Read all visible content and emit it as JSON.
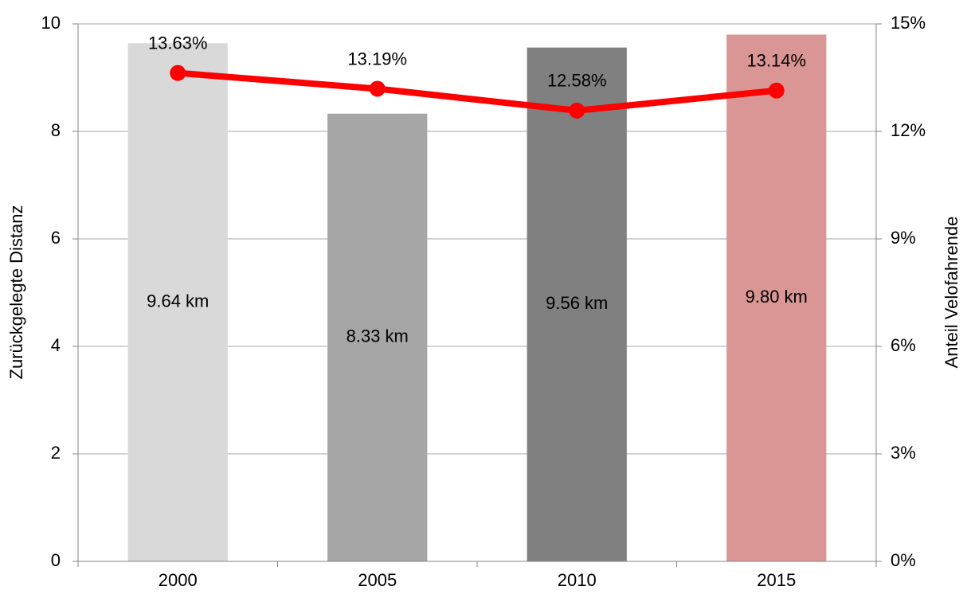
{
  "chart_data": {
    "type": "bar",
    "categories": [
      "2000",
      "2005",
      "2010",
      "2015"
    ],
    "series": [
      {
        "type": "bar",
        "colors": [
          "#d9d9d9",
          "#a6a6a6",
          "#808080",
          "#d99694"
        ],
        "values": [
          9.64,
          8.33,
          9.56,
          9.8
        ],
        "value_labels": [
          "9.64 km",
          "8.33 km",
          "9.56 km",
          "9.80 km"
        ]
      },
      {
        "type": "line",
        "axis": "y2",
        "color": "#ff0000",
        "values": [
          13.63,
          13.19,
          12.58,
          13.14
        ],
        "value_labels": [
          "13.63%",
          "13.19%",
          "12.58%",
          "13.14%"
        ]
      }
    ],
    "ylabel": "Zurückgelegte Distanz",
    "y2label": "Anteil Velofahrende",
    "ylim": [
      0,
      10
    ],
    "yticks": [
      0,
      2,
      4,
      6,
      8,
      10
    ],
    "y2lim": [
      0,
      15
    ],
    "y2ticks": [
      {
        "value": 0,
        "label": "0%"
      },
      {
        "value": 3,
        "label": "3%"
      },
      {
        "value": 6,
        "label": "6%"
      },
      {
        "value": 9,
        "label": "9%"
      },
      {
        "value": 12,
        "label": "12%"
      },
      {
        "value": 15,
        "label": "15%"
      }
    ],
    "grid": true
  }
}
